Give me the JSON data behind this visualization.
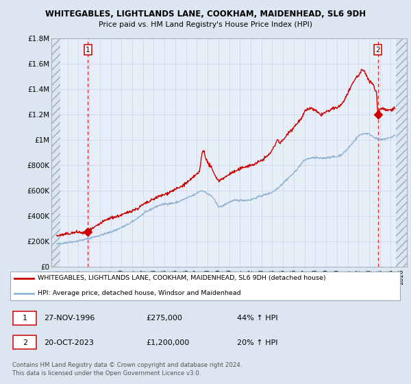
{
  "title1": "WHITEGABLES, LIGHTLANDS LANE, COOKHAM, MAIDENHEAD, SL6 9DH",
  "title2": "Price paid vs. HM Land Registry's House Price Index (HPI)",
  "ylim": [
    0,
    1800000
  ],
  "yticks": [
    0,
    200000,
    400000,
    600000,
    800000,
    1000000,
    1200000,
    1400000,
    1600000,
    1800000
  ],
  "ytick_labels": [
    "£0",
    "£200K",
    "£400K",
    "£600K",
    "£800K",
    "£1M",
    "£1.2M",
    "£1.4M",
    "£1.6M",
    "£1.8M"
  ],
  "xlim_start": 1993.5,
  "xlim_end": 2026.5,
  "xticks": [
    1994,
    1995,
    1996,
    1997,
    1998,
    1999,
    2000,
    2001,
    2002,
    2003,
    2004,
    2005,
    2006,
    2007,
    2008,
    2009,
    2010,
    2011,
    2012,
    2013,
    2014,
    2015,
    2016,
    2017,
    2018,
    2019,
    2020,
    2021,
    2022,
    2023,
    2024,
    2025,
    2026
  ],
  "sale1_x": 1996.9,
  "sale1_y": 275000,
  "sale2_x": 2023.8,
  "sale2_y": 1200000,
  "hpi_color": "#92b4d4",
  "price_color": "#cc0000",
  "annotation_color": "#cc0000",
  "grid_color": "#c8d4e4",
  "background_color": "#dce6f1",
  "plot_bg_color": "#e8eef8",
  "legend_label1": "WHITEGABLES, LIGHTLANDS LANE, COOKHAM, MAIDENHEAD, SL6 9DH (detached house)",
  "legend_label2": "HPI: Average price, detached house, Windsor and Maidenhead",
  "note1_date": "27-NOV-1996",
  "note1_price": "£275,000",
  "note1_hpi": "44% ↑ HPI",
  "note2_date": "20-OCT-2023",
  "note2_price": "£1,200,000",
  "note2_hpi": "20% ↑ HPI",
  "footer": "Contains HM Land Registry data © Crown copyright and database right 2024.\nThis data is licensed under the Open Government Licence v3.0."
}
